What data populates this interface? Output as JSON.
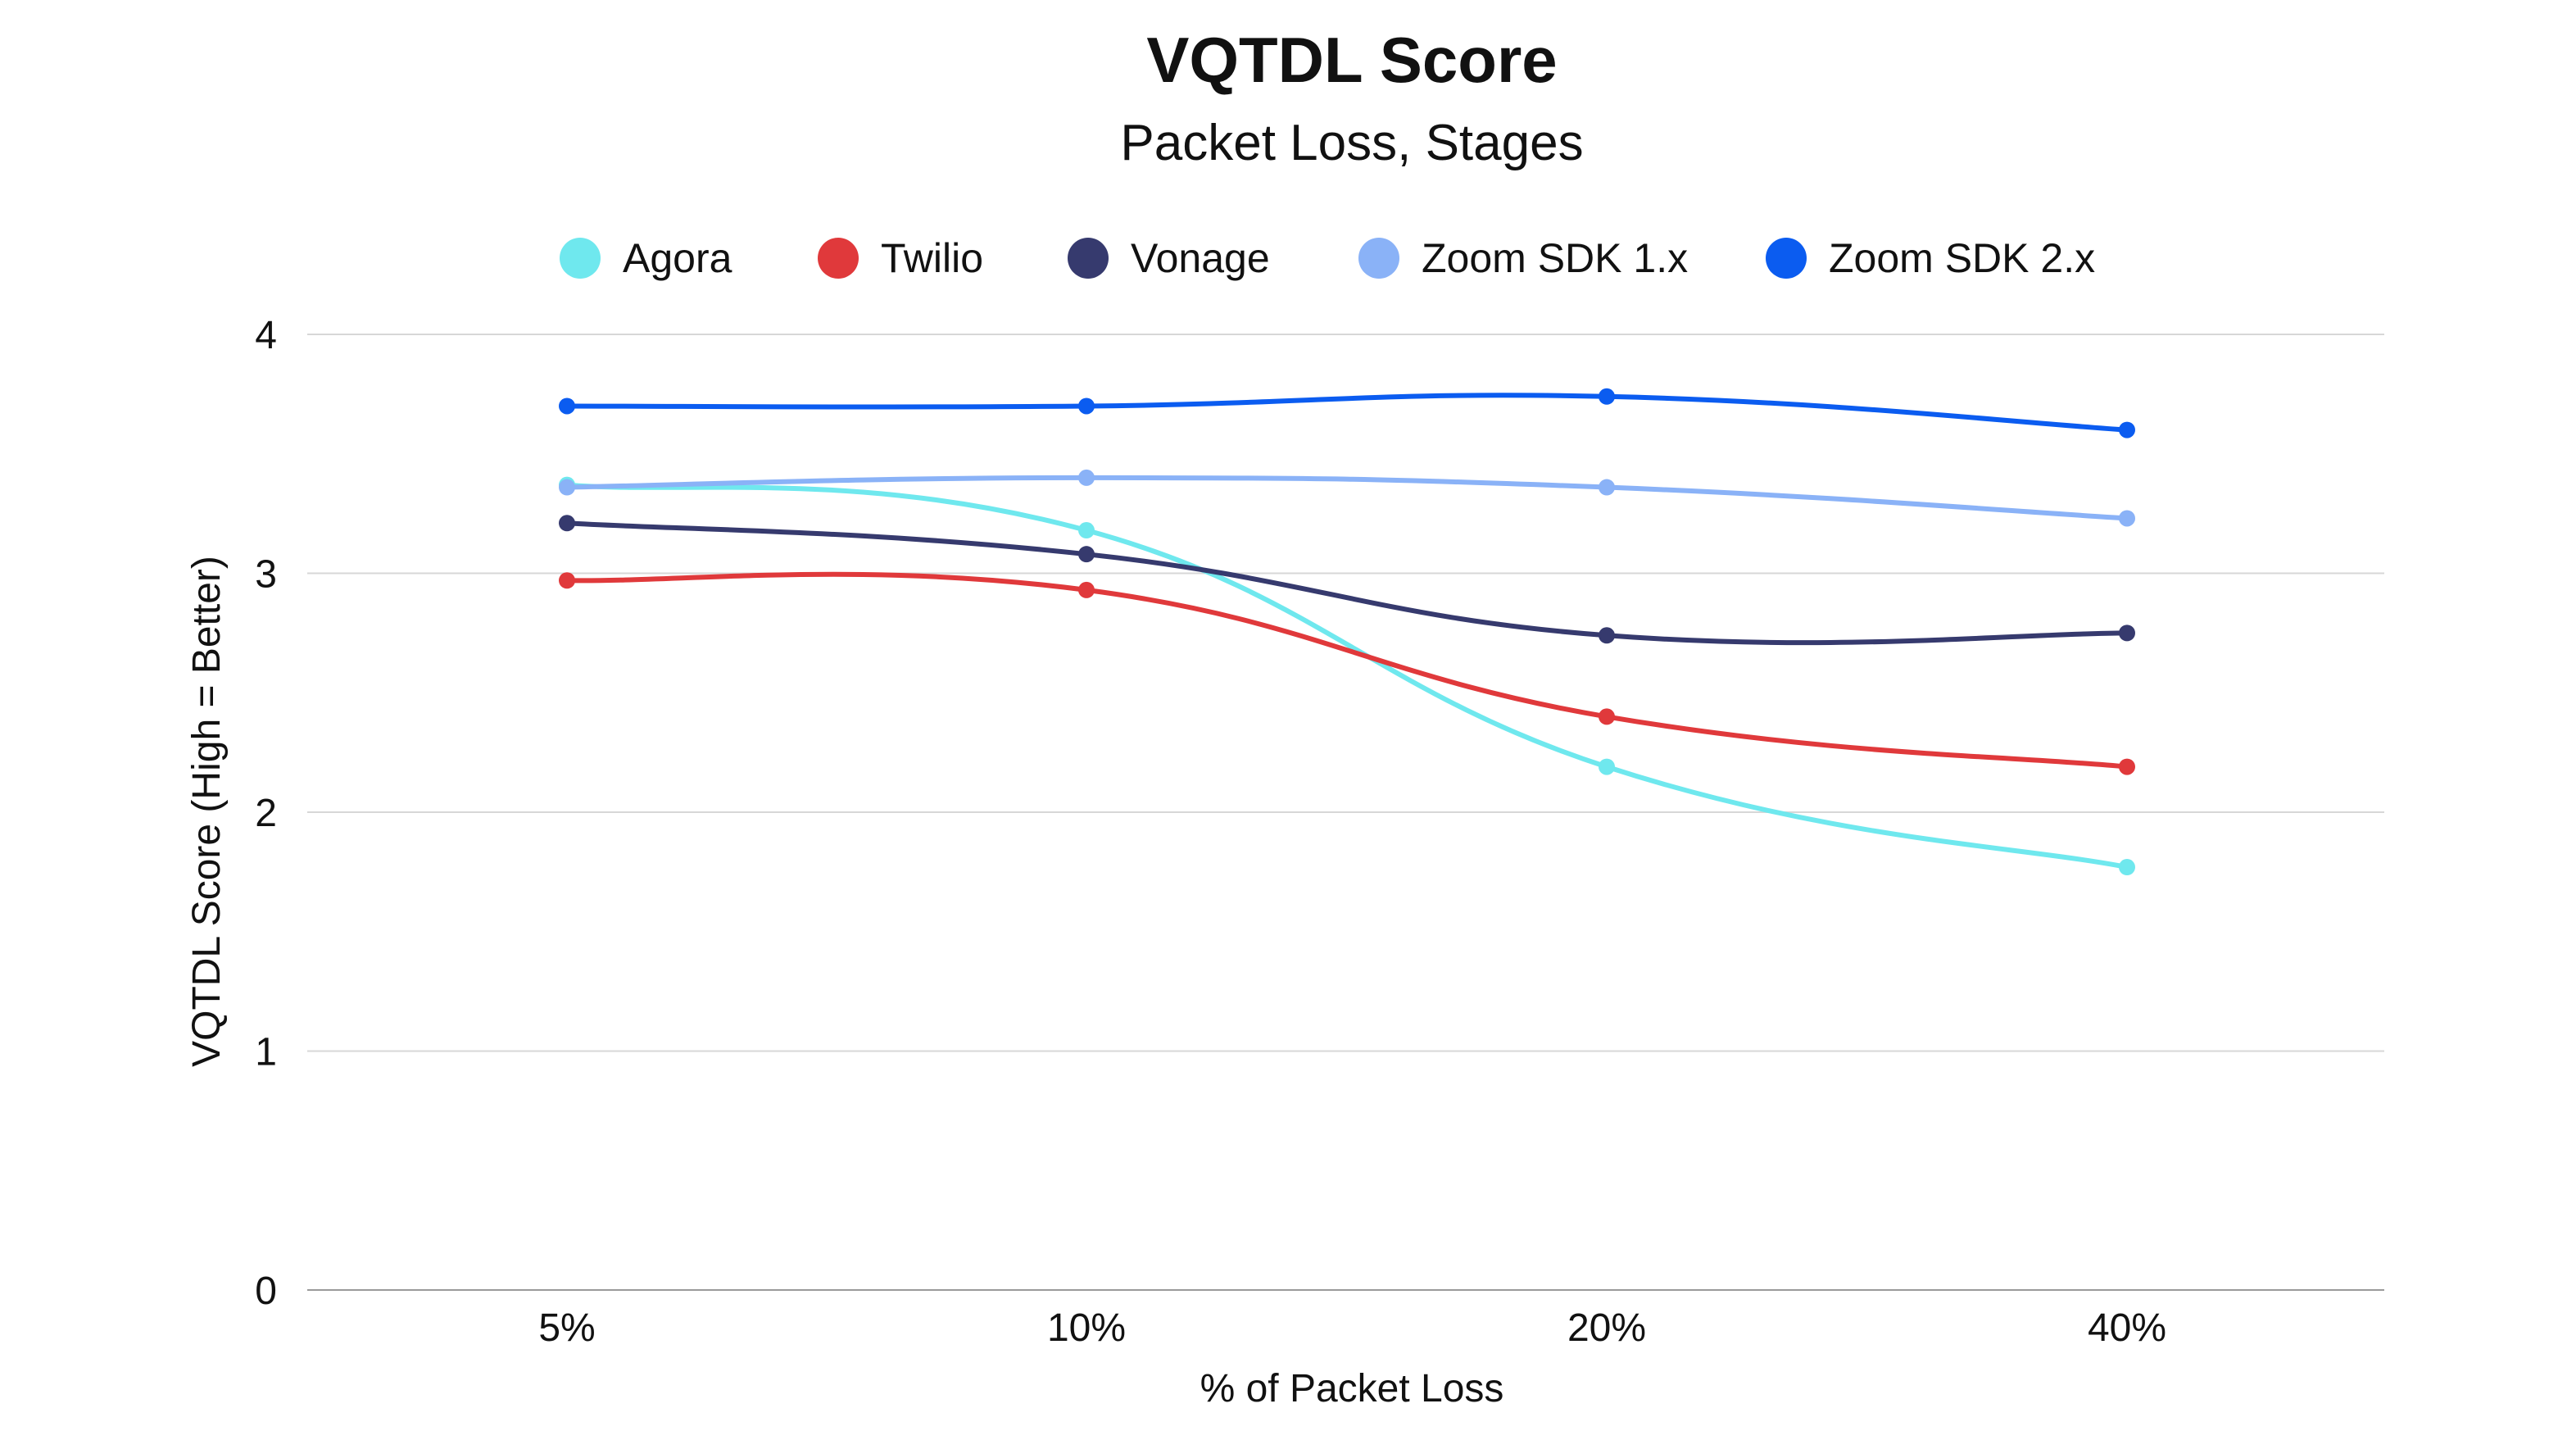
{
  "chart_data": {
    "type": "line",
    "title": "VQTDL Score",
    "subtitle": "Packet Loss, Stages",
    "xlabel": "% of Packet Loss",
    "ylabel": "VQTDL Score (High = Better)",
    "categories": [
      "5%",
      "10%",
      "20%",
      "40%"
    ],
    "ylim": [
      0,
      4
    ],
    "yticks": [
      0,
      1,
      2,
      3,
      4
    ],
    "grid": true,
    "legend_position": "top-center",
    "smooth": true,
    "series": [
      {
        "name": "Agora",
        "color": "#6FE8EE",
        "values": [
          3.37,
          3.18,
          2.19,
          1.77
        ]
      },
      {
        "name": "Twilio",
        "color": "#E0393B",
        "values": [
          2.97,
          2.93,
          2.4,
          2.19
        ]
      },
      {
        "name": "Vonage",
        "color": "#363A6E",
        "values": [
          3.21,
          3.08,
          2.74,
          2.75
        ]
      },
      {
        "name": "Zoom SDK 1.x",
        "color": "#8AB2F7",
        "values": [
          3.36,
          3.4,
          3.36,
          3.23
        ]
      },
      {
        "name": "Zoom SDK 2.x",
        "color": "#0B5CF0",
        "values": [
          3.7,
          3.7,
          3.74,
          3.6
        ]
      }
    ]
  }
}
